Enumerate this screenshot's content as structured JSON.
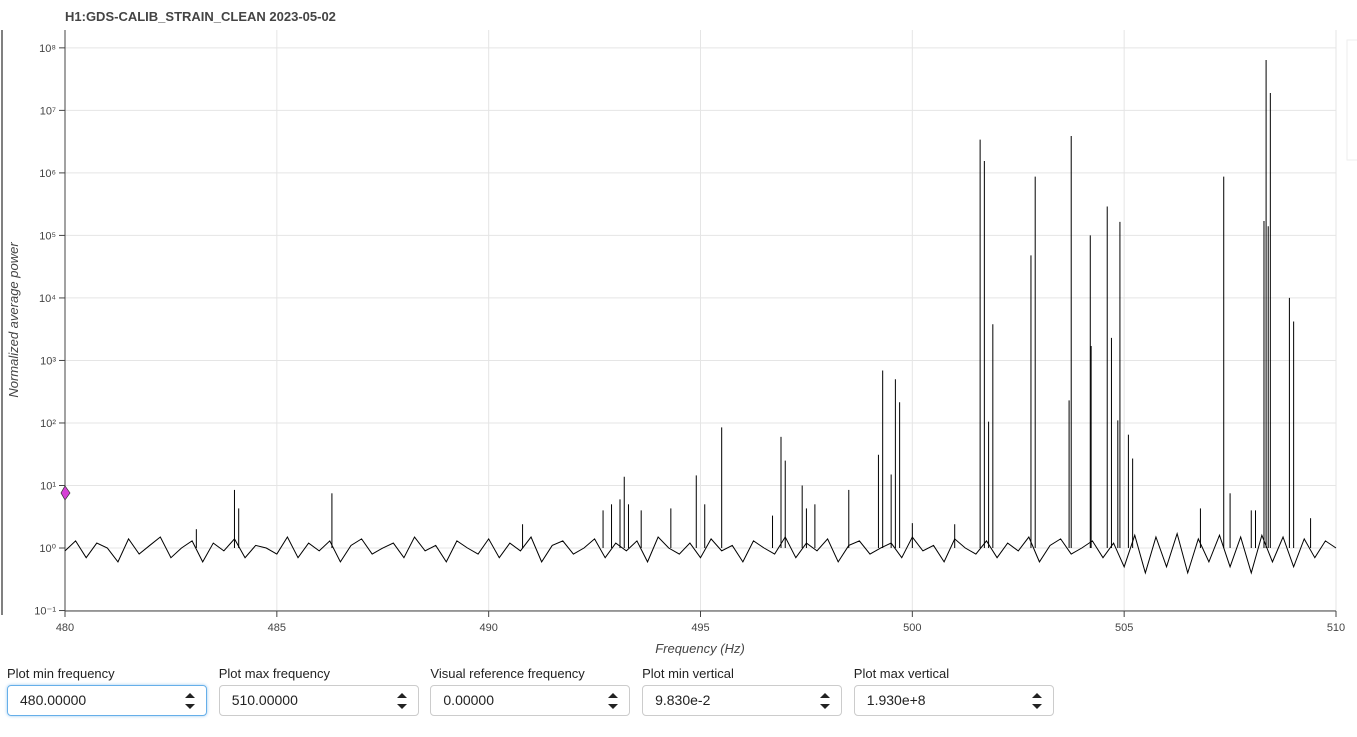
{
  "chart_data": {
    "type": "line",
    "title": "H1:GDS-CALIB_STRAIN_CLEAN 2023-05-02",
    "x_label": "Frequency (Hz)",
    "y_label": "Normalized average power",
    "xlim": [
      480,
      510
    ],
    "xticks": [
      480,
      485,
      490,
      495,
      500,
      505,
      510
    ],
    "ylim": [
      0.0983,
      193000000
    ],
    "log_y": true,
    "grid": true,
    "yticks": [
      {
        "value": 0.1,
        "label": "10⁻¹"
      },
      {
        "value": 1,
        "label": "10⁰"
      },
      {
        "value": 10,
        "label": "10¹"
      },
      {
        "value": 100,
        "label": "10²"
      },
      {
        "value": 1000,
        "label": "10³"
      },
      {
        "value": 10000,
        "label": "10⁴"
      },
      {
        "value": 100000,
        "label": "10⁵"
      },
      {
        "value": 1000000,
        "label": "10⁶"
      },
      {
        "value": 10000000,
        "label": "10⁷"
      },
      {
        "value": 100000000,
        "label": "10⁸"
      }
    ],
    "series": [
      {
        "color": "#000000",
        "style": "line",
        "x": [
          480,
          480.25,
          480.5,
          480.75,
          481,
          481.25,
          481.5,
          481.75,
          482,
          482.25,
          482.5,
          482.75,
          483,
          483.25,
          483.5,
          483.75,
          484,
          484.25,
          484.5,
          484.75,
          485,
          485.25,
          485.5,
          485.75,
          486,
          486.25,
          486.5,
          486.75,
          487,
          487.25,
          487.5,
          487.75,
          488,
          488.25,
          488.5,
          488.75,
          489,
          489.25,
          489.5,
          489.75,
          490,
          490.25,
          490.5,
          490.75,
          491,
          491.25,
          491.5,
          491.75,
          492,
          492.25,
          492.5,
          492.75,
          493,
          493.25,
          493.5,
          493.75,
          494,
          494.25,
          494.5,
          494.75,
          495,
          495.25,
          495.5,
          495.75,
          496,
          496.25,
          496.5,
          496.75,
          497,
          497.25,
          497.5,
          497.75,
          498,
          498.25,
          498.5,
          498.75,
          499,
          499.25,
          499.5,
          499.75,
          500,
          500.25,
          500.5,
          500.75,
          501,
          501.25,
          501.5,
          501.75,
          502,
          502.25,
          502.5,
          502.75,
          503,
          503.25,
          503.5,
          503.75,
          504,
          504.25,
          504.5,
          504.75,
          505,
          505.25,
          505.5,
          505.75,
          506,
          506.25,
          506.5,
          506.75,
          507,
          507.25,
          507.5,
          507.75,
          508,
          508.25,
          508.5,
          508.75,
          509,
          509.25,
          509.5,
          509.75,
          510
        ],
        "values": [
          0.9,
          1.3,
          0.7,
          1.2,
          1.0,
          0.6,
          1.4,
          0.8,
          1.1,
          1.5,
          0.7,
          1.0,
          1.3,
          0.6,
          1.2,
          0.9,
          1.4,
          0.7,
          1.1,
          1.0,
          0.8,
          1.5,
          0.7,
          1.2,
          0.9,
          1.3,
          0.6,
          1.1,
          1.4,
          0.8,
          1.0,
          1.2,
          0.7,
          1.5,
          0.9,
          1.1,
          0.6,
          1.3,
          1.0,
          0.8,
          1.4,
          0.7,
          1.2,
          0.9,
          1.5,
          0.6,
          1.1,
          1.3,
          0.8,
          1.0,
          1.4,
          0.7,
          1.2,
          0.9,
          1.3,
          0.6,
          1.5,
          1.0,
          0.8,
          1.2,
          0.7,
          1.4,
          0.9,
          1.1,
          0.6,
          1.3,
          1.0,
          0.8,
          1.5,
          0.7,
          1.2,
          0.9,
          1.4,
          0.6,
          1.1,
          1.3,
          0.8,
          1.0,
          1.2,
          0.7,
          1.5,
          0.9,
          1.1,
          0.6,
          1.4,
          1.0,
          0.8,
          1.3,
          0.7,
          1.2,
          0.9,
          1.5,
          0.6,
          1.1,
          1.4,
          0.8,
          1.0,
          1.3,
          0.7,
          1.2,
          0.5,
          1.6,
          0.4,
          1.5,
          0.5,
          1.7,
          0.4,
          1.4,
          0.6,
          1.6,
          0.5,
          1.5,
          0.4,
          1.6,
          0.6,
          1.5,
          0.5,
          1.4,
          0.7,
          1.3,
          1.0
        ]
      },
      {
        "color": "#000000",
        "style": "stems",
        "x": [
          483.1,
          484.0,
          484.1,
          486.3,
          490.8,
          492.7,
          492.9,
          493.1,
          493.2,
          493.3,
          493.6,
          494.3,
          494.9,
          495.1,
          495.5,
          496.7,
          496.9,
          497.0,
          497.4,
          497.5,
          497.7,
          498.5,
          499.2,
          499.3,
          499.5,
          499.6,
          499.7,
          500.0,
          501.0,
          501.6,
          501.7,
          501.8,
          501.9,
          502.8,
          502.9,
          503.7,
          503.75,
          504.2,
          504.22,
          504.6,
          504.7,
          504.85,
          504.9,
          505.1,
          505.2,
          506.8,
          507.35,
          507.5,
          508.0,
          508.1,
          508.3,
          508.35,
          508.4,
          508.45,
          508.9,
          509.0,
          509.4
        ],
        "values": [
          2,
          8.5,
          4.3,
          7.5,
          2.4,
          4,
          5,
          6,
          13.8,
          5,
          4,
          4.3,
          14.5,
          5,
          85,
          3.3,
          60,
          25,
          10,
          4.3,
          5,
          8.5,
          31,
          690,
          15,
          500,
          215,
          2.5,
          2.4,
          3400000,
          1550000,
          105,
          3800,
          48000,
          870000,
          230,
          3900000,
          100000,
          1700,
          290000,
          2300,
          110,
          165000,
          65,
          27,
          4.3,
          870000,
          7.5,
          4,
          4,
          170000,
          64000000,
          140000,
          19000000,
          10000,
          4200,
          3
        ]
      }
    ],
    "reference_marker": {
      "x": 480,
      "y": 7.6,
      "color": "#d63fd6"
    }
  },
  "controls": [
    {
      "label": "Plot min frequency",
      "value": "480.00000"
    },
    {
      "label": "Plot max frequency",
      "value": "510.00000"
    },
    {
      "label": "Visual reference frequency",
      "value": "0.00000"
    },
    {
      "label": "Plot min vertical",
      "value": "9.830e-2"
    },
    {
      "label": "Plot max vertical",
      "value": "1.930e+8"
    }
  ]
}
